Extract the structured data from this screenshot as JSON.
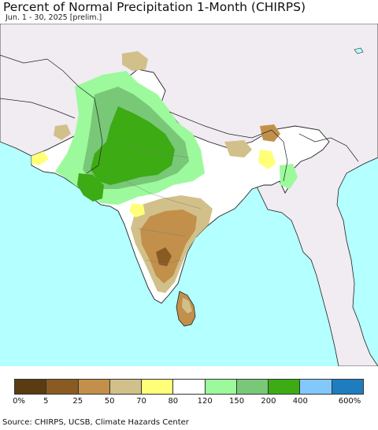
{
  "title": "Percent of Normal Precipitation 1-Month (CHIRPS)",
  "subtitle": "Jun. 1 - 30, 2025 [prelim.]",
  "source": "Source: CHIRPS, UCSB, Climate Hazards Center",
  "colors": {
    "ocean": "#b4ffff",
    "land_other": "#f0ecf2",
    "border": "#222222"
  },
  "legend": {
    "colors": [
      "#5a3c12",
      "#8a5a23",
      "#c2904a",
      "#d2c08a",
      "#ffff78",
      "#ffffff",
      "#9cfa9c",
      "#78c878",
      "#3cab14",
      "#82c8fa",
      "#1e7dbe"
    ],
    "tick_labels": [
      "0%",
      "5",
      "25",
      "50",
      "70",
      "80",
      "120",
      "150",
      "200",
      "400",
      "600%"
    ]
  }
}
